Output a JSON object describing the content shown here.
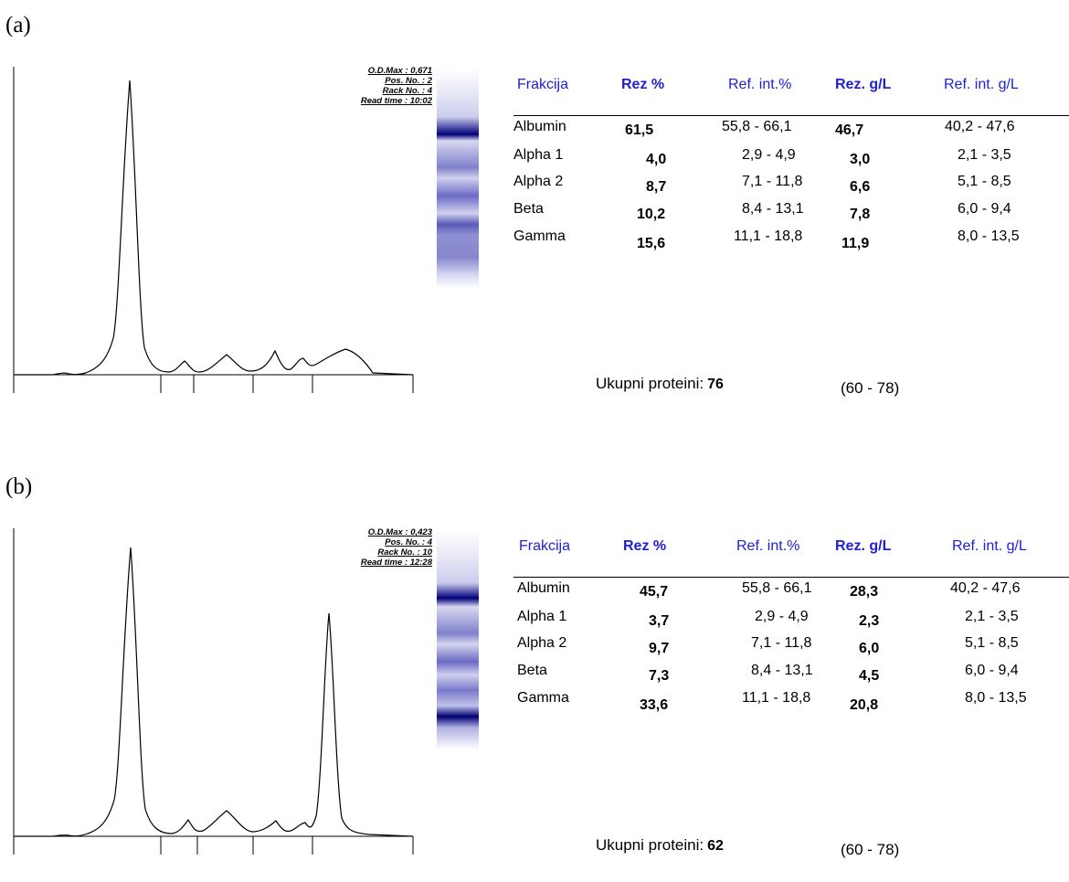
{
  "panels": [
    {
      "label": "(a)",
      "meta": [
        "O.D.Max : 0,671",
        "Pos. No. : 2",
        "Rack No. : 4",
        "Read time : 10:02"
      ],
      "headers": [
        "Frakcija",
        "Rez %",
        "Ref. int.%",
        "Rez. g/L",
        "Ref. int. g/L"
      ],
      "rows": [
        {
          "name": "Albumin",
          "rez_pct": "61,5",
          "ref_pct": "55,8 - 66,1",
          "rez_gl": "46,7",
          "ref_gl": "40,2 - 47,6"
        },
        {
          "name": "Alpha 1",
          "rez_pct": "4,0",
          "ref_pct": "2,9 -  4,9",
          "rez_gl": "3,0",
          "ref_gl": "2,1 -  3,5"
        },
        {
          "name": "Alpha 2",
          "rez_pct": "8,7",
          "ref_pct": "7,1 - 11,8",
          "rez_gl": "6,6",
          "ref_gl": "5,1 -  8,5"
        },
        {
          "name": "Beta",
          "rez_pct": "10,2",
          "ref_pct": "8,4 - 13,1",
          "rez_gl": "7,8",
          "ref_gl": "6,0 -  9,4"
        },
        {
          "name": "Gamma",
          "rez_pct": "15,6",
          "ref_pct": "11,1 - 18,8",
          "rez_gl": "11,9",
          "ref_gl": "8,0 - 13,5"
        }
      ],
      "total_label": "Ukupni proteini:",
      "total_value": "76",
      "total_range": "(60 - 78)"
    },
    {
      "label": "(b)",
      "meta": [
        "O.D.Max : 0,423",
        "Pos. No. : 4",
        "Rack No. : 10",
        "Read time : 12:28"
      ],
      "headers": [
        "Frakcija",
        "Rez %",
        "Ref. int.%",
        "Rez. g/L",
        "Ref. int. g/L"
      ],
      "rows": [
        {
          "name": "Albumin",
          "rez_pct": "45,7",
          "ref_pct": "55,8 - 66,1",
          "rez_gl": "28,3",
          "ref_gl": "40,2 - 47,6"
        },
        {
          "name": "Alpha 1",
          "rez_pct": "3,7",
          "ref_pct": "2,9 -  4,9",
          "rez_gl": "2,3",
          "ref_gl": "2,1 -  3,5"
        },
        {
          "name": "Alpha 2",
          "rez_pct": "9,7",
          "ref_pct": "7,1 - 11,8",
          "rez_gl": "6,0",
          "ref_gl": "5,1 -  8,5"
        },
        {
          "name": "Beta",
          "rez_pct": "7,3",
          "ref_pct": "8,4 - 13,1",
          "rez_gl": "4,5",
          "ref_gl": "6,0 -  9,4"
        },
        {
          "name": "Gamma",
          "rez_pct": "33,6",
          "ref_pct": "11,1 - 18,8",
          "rez_gl": "20,8",
          "ref_gl": "8,0 - 13,5"
        }
      ],
      "total_label": "Ukupni proteini:",
      "total_value": "62",
      "total_range": "(60 - 78)"
    }
  ],
  "chart_data": [
    {
      "type": "line",
      "title": "",
      "xlabel": "",
      "ylabel": "",
      "grid": false,
      "x": [
        0,
        2,
        4,
        6,
        8,
        10,
        12,
        14,
        16,
        18,
        20,
        22,
        24,
        26,
        28,
        30,
        32,
        34,
        36,
        38,
        40,
        42,
        44,
        46,
        48,
        50,
        52,
        54,
        56,
        58,
        60,
        62,
        64,
        66,
        68,
        70,
        72,
        74,
        76,
        78,
        80,
        82,
        84,
        86,
        88,
        90,
        92,
        94,
        96,
        98,
        100
      ],
      "series": [
        {
          "values": [
            0.0,
            0.01,
            0.02,
            0.0,
            0.01,
            0.02,
            0.05,
            0.12,
            0.3,
            0.85,
            1.0,
            0.4,
            0.08,
            0.02,
            0.01,
            0.04,
            0.09,
            0.04,
            0.02,
            0.04,
            0.09,
            0.12,
            0.07,
            0.04,
            0.04,
            0.05,
            0.11,
            0.07,
            0.05,
            0.07,
            0.08,
            0.06,
            0.05,
            0.06,
            0.07,
            0.08,
            0.09,
            0.08,
            0.06,
            0.03,
            0.01,
            0.0,
            0.0,
            0.0,
            0.0,
            0.0,
            0.0,
            0.0,
            0.0,
            0.0,
            0.0
          ]
        }
      ]
    },
    {
      "type": "line",
      "title": "",
      "xlabel": "",
      "ylabel": "",
      "grid": false,
      "x": [
        0,
        2,
        4,
        6,
        8,
        10,
        12,
        14,
        16,
        18,
        20,
        22,
        24,
        26,
        28,
        30,
        32,
        34,
        36,
        38,
        40,
        42,
        44,
        46,
        48,
        50,
        52,
        54,
        56,
        58,
        60,
        62,
        64,
        66,
        68,
        70,
        72,
        74,
        76,
        78,
        80,
        82,
        84,
        86,
        88,
        90,
        92,
        94,
        96,
        98,
        100
      ],
      "series": [
        {
          "values": [
            0.0,
            0.01,
            0.02,
            0.0,
            0.01,
            0.02,
            0.05,
            0.12,
            0.3,
            0.85,
            1.0,
            0.4,
            0.08,
            0.02,
            0.01,
            0.05,
            0.06,
            0.03,
            0.04,
            0.08,
            0.11,
            0.09,
            0.06,
            0.04,
            0.04,
            0.06,
            0.09,
            0.05,
            0.03,
            0.05,
            0.07,
            0.06,
            0.2,
            0.65,
            0.8,
            0.35,
            0.08,
            0.02,
            0.01,
            0.01,
            0.0,
            0.0,
            0.0,
            0.0,
            0.0,
            0.0,
            0.0,
            0.0,
            0.0,
            0.0,
            0.0
          ]
        }
      ]
    }
  ]
}
